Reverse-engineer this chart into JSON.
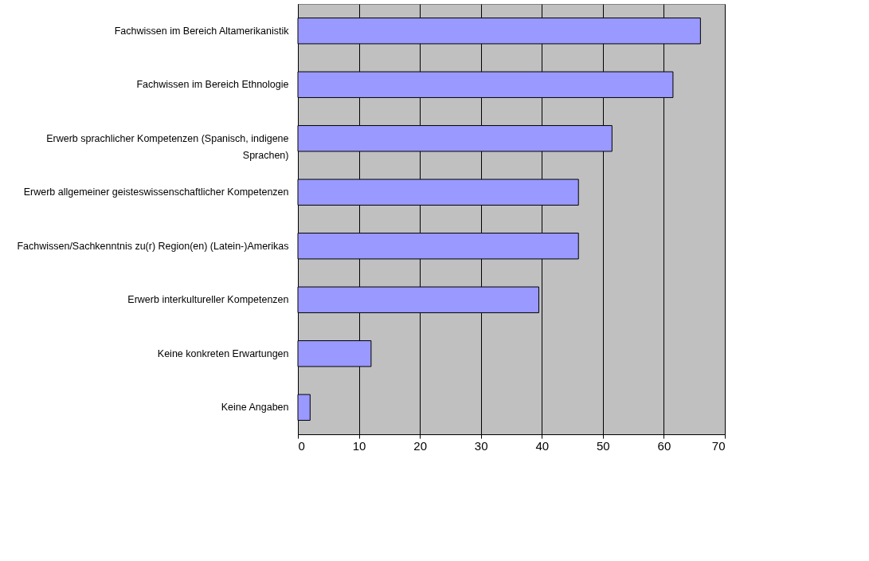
{
  "chart_data": {
    "type": "bar",
    "orientation": "horizontal",
    "categories": [
      "Fachwissen im Bereich Altamerikanistik",
      "Fachwissen im Bereich Ethnologie",
      "Erwerb sprachlicher Kompetenzen (Spanisch, indigene Sprachen)",
      "Erwerb allgemeiner geisteswissenschaftlicher Kompetenzen",
      "Fachwissen/Sachkenntnis zu(r) Region(en) (Latein-)Amerikas",
      "Erwerb interkultureller Kompetenzen",
      "Keine konkreten Erwartungen",
      "Keine Angaben"
    ],
    "values": [
      66,
      61.5,
      51.5,
      46,
      46,
      39.5,
      12,
      2
    ],
    "color": "#9999ff",
    "xlim": [
      0,
      70
    ],
    "xticks": [
      0,
      10,
      20,
      30,
      40,
      50,
      60,
      70
    ],
    "grid": "x"
  }
}
